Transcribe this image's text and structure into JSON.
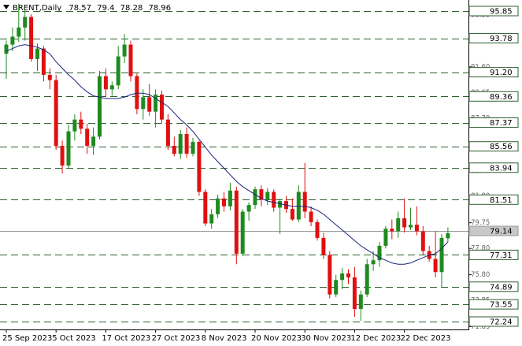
{
  "chart_data": {
    "type": "candlestick",
    "title": "BRENT,Daily",
    "categories": [
      "25 Sep 2023",
      null,
      null,
      null,
      null,
      null,
      null,
      null,
      "5 Oct 2023",
      null,
      null,
      null,
      null,
      null,
      null,
      null,
      "17 Oct 2023",
      null,
      null,
      null,
      null,
      null,
      null,
      null,
      "27 Oct 2023",
      null,
      null,
      null,
      null,
      null,
      null,
      null,
      "8 Nov 2023",
      null,
      null,
      null,
      null,
      null,
      null,
      null,
      "20 Nov 2023",
      null,
      null,
      null,
      null,
      null,
      null,
      null,
      "30 Nov 2023",
      null,
      null,
      null,
      null,
      null,
      null,
      null,
      "12 Dec 2023",
      null,
      null,
      null,
      null,
      null,
      null,
      null,
      "22 Dec 2023",
      null,
      null,
      null,
      null,
      null,
      null,
      null
    ],
    "open": [
      92.6,
      93.3,
      93.9,
      94.6,
      95.4,
      92.2,
      93.0,
      91.0,
      90.6,
      85.6,
      84.1,
      86.7,
      87.6,
      86.9,
      85.6,
      86.3,
      90.9,
      89.9,
      90.2,
      92.4,
      93.3,
      90.9,
      88.4,
      89.3,
      88.2,
      89.5,
      87.6,
      85.6,
      85.0,
      86.5,
      85.0,
      85.9,
      82.1,
      79.7,
      80.4,
      81.6,
      81.0,
      82.2,
      77.4,
      80.6,
      81.1,
      82.3,
      81.5,
      82.1,
      80.9,
      81.4,
      80.8,
      80.0,
      82.1,
      80.6,
      79.8,
      78.6,
      77.3,
      74.3,
      75.4,
      75.9,
      75.6,
      73.2,
      74.3,
      76.6,
      76.9,
      78.0,
      79.3,
      79.1,
      80.1,
      79.4,
      79.6,
      79.1,
      77.6,
      77.0,
      76.0,
      78.57
    ],
    "high": [
      93.6,
      94.6,
      96.4,
      95.9,
      95.6,
      93.4,
      93.2,
      91.5,
      91.0,
      86.0,
      87.2,
      88.0,
      88.2,
      87.3,
      87.0,
      91.3,
      91.5,
      90.5,
      93.2,
      94.1,
      93.6,
      91.1,
      89.9,
      90.3,
      89.9,
      89.8,
      88.0,
      86.3,
      86.8,
      87.0,
      86.2,
      86.0,
      82.3,
      80.8,
      81.9,
      82.1,
      82.8,
      82.5,
      80.8,
      81.3,
      82.5,
      82.6,
      82.4,
      82.3,
      81.6,
      81.8,
      81.6,
      82.6,
      84.3,
      81.0,
      80.0,
      79.0,
      77.6,
      75.8,
      76.3,
      76.2,
      76.4,
      74.6,
      77.0,
      77.6,
      78.3,
      79.5,
      80.0,
      80.6,
      81.6,
      80.9,
      81.0,
      79.5,
      78.0,
      79.1,
      78.9,
      79.4
    ],
    "low": [
      90.7,
      92.8,
      93.5,
      93.6,
      92.0,
      91.3,
      90.5,
      89.9,
      85.3,
      83.5,
      83.9,
      86.0,
      86.5,
      85.0,
      84.9,
      86.1,
      89.3,
      89.4,
      89.9,
      91.9,
      90.5,
      88.0,
      87.6,
      87.9,
      87.0,
      87.3,
      85.3,
      84.8,
      84.6,
      84.7,
      84.8,
      81.8,
      79.5,
      79.3,
      80.1,
      80.6,
      80.7,
      76.6,
      77.2,
      79.9,
      80.8,
      81.0,
      81.1,
      80.6,
      78.9,
      80.5,
      79.9,
      79.8,
      80.1,
      79.5,
      78.4,
      77.0,
      74.0,
      74.1,
      74.7,
      75.1,
      72.6,
      72.3,
      74.1,
      76.1,
      76.4,
      77.8,
      78.5,
      78.6,
      79.0,
      79.2,
      78.8,
      77.3,
      76.8,
      75.6,
      74.8,
      78.28
    ],
    "close": [
      93.3,
      93.9,
      94.6,
      95.4,
      92.2,
      93.0,
      91.0,
      90.6,
      85.6,
      84.1,
      86.7,
      87.6,
      86.9,
      85.6,
      86.3,
      90.9,
      89.9,
      90.2,
      92.4,
      93.3,
      90.9,
      88.4,
      89.3,
      88.2,
      89.5,
      87.6,
      85.6,
      85.0,
      86.5,
      85.0,
      85.9,
      82.1,
      79.7,
      80.4,
      81.6,
      81.0,
      82.2,
      77.4,
      80.6,
      81.1,
      82.3,
      81.5,
      82.1,
      80.9,
      81.4,
      80.8,
      80.0,
      82.1,
      80.6,
      79.8,
      78.6,
      77.3,
      74.3,
      75.4,
      75.9,
      75.6,
      73.2,
      74.3,
      76.6,
      76.9,
      78.0,
      79.3,
      79.1,
      80.1,
      79.4,
      79.6,
      79.1,
      77.6,
      77.0,
      76.0,
      78.6,
      78.96
    ],
    "moving_average": [
      92.8,
      93.0,
      93.2,
      93.3,
      93.2,
      93.1,
      92.9,
      92.6,
      92.0,
      91.5,
      91.0,
      90.6,
      90.1,
      89.7,
      89.4,
      89.3,
      89.2,
      89.2,
      89.2,
      89.3,
      89.5,
      89.6,
      89.6,
      89.5,
      89.2,
      88.9,
      88.6,
      88.1,
      87.6,
      87.2,
      86.7,
      86.1,
      85.5,
      84.9,
      84.4,
      83.9,
      83.4,
      82.9,
      82.5,
      82.2,
      81.9,
      81.6,
      81.4,
      81.3,
      81.2,
      81.1,
      81.0,
      81.0,
      81.0,
      80.9,
      80.7,
      80.4,
      80.0,
      79.6,
      79.2,
      78.8,
      78.4,
      78.0,
      77.7,
      77.4,
      77.1,
      76.9,
      76.7,
      76.6,
      76.6,
      76.7,
      76.9,
      77.1,
      77.3,
      77.4,
      77.8,
      78.3
    ],
    "up_color": "#1f8a1f",
    "down_color": "#e01010",
    "ma_color": "#1a237e",
    "ylim": [
      71.64,
      96.69
    ],
    "yticks": [
      95.55,
      {
        "value": 93.6,
        "label": "93.60"
      },
      {
        "value": 91.6,
        "label": "91.60"
      },
      89.65,
      {
        "value": 87.7,
        "label": "87.70"
      },
      {
        "value": 85.7,
        "label": "85.70"
      },
      {
        "value": 83.7,
        "label": "83.70"
      },
      {
        "value": 81.8,
        "label": "81.80"
      },
      79.75,
      {
        "value": 77.8,
        "label": "77.80"
      },
      {
        "value": 75.8,
        "label": "75.80"
      },
      73.85,
      71.85
    ],
    "levels": [
      95.85,
      93.78,
      {
        "value": 91.2,
        "label": "91.20"
      },
      89.36,
      87.37,
      85.56,
      83.94,
      81.51,
      77.31,
      74.89,
      73.55,
      72.24
    ],
    "level_color": "#2f5f2f",
    "bid": 79.14
  }
}
